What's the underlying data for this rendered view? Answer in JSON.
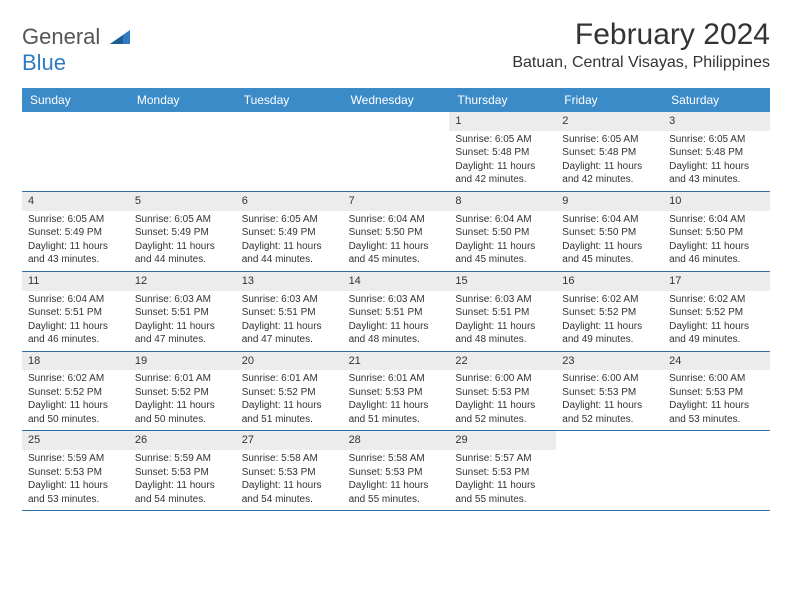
{
  "logo": {
    "line1": "General",
    "line2": "Blue"
  },
  "title": "February 2024",
  "subtitle": "Batuan, Central Visayas, Philippines",
  "colors": {
    "header_bg": "#3b8bc9",
    "header_text": "#ffffff",
    "daynum_bg": "#ececec",
    "week_border": "#2f6da8",
    "logo_gray": "#555555",
    "logo_blue": "#2f7ac0",
    "text": "#333333",
    "background": "#ffffff"
  },
  "day_names": [
    "Sunday",
    "Monday",
    "Tuesday",
    "Wednesday",
    "Thursday",
    "Friday",
    "Saturday"
  ],
  "weeks": [
    [
      {
        "day": "",
        "sunrise": "",
        "sunset": "",
        "daylight": ""
      },
      {
        "day": "",
        "sunrise": "",
        "sunset": "",
        "daylight": ""
      },
      {
        "day": "",
        "sunrise": "",
        "sunset": "",
        "daylight": ""
      },
      {
        "day": "",
        "sunrise": "",
        "sunset": "",
        "daylight": ""
      },
      {
        "day": "1",
        "sunrise": "Sunrise: 6:05 AM",
        "sunset": "Sunset: 5:48 PM",
        "daylight": "Daylight: 11 hours and 42 minutes."
      },
      {
        "day": "2",
        "sunrise": "Sunrise: 6:05 AM",
        "sunset": "Sunset: 5:48 PM",
        "daylight": "Daylight: 11 hours and 42 minutes."
      },
      {
        "day": "3",
        "sunrise": "Sunrise: 6:05 AM",
        "sunset": "Sunset: 5:48 PM",
        "daylight": "Daylight: 11 hours and 43 minutes."
      }
    ],
    [
      {
        "day": "4",
        "sunrise": "Sunrise: 6:05 AM",
        "sunset": "Sunset: 5:49 PM",
        "daylight": "Daylight: 11 hours and 43 minutes."
      },
      {
        "day": "5",
        "sunrise": "Sunrise: 6:05 AM",
        "sunset": "Sunset: 5:49 PM",
        "daylight": "Daylight: 11 hours and 44 minutes."
      },
      {
        "day": "6",
        "sunrise": "Sunrise: 6:05 AM",
        "sunset": "Sunset: 5:49 PM",
        "daylight": "Daylight: 11 hours and 44 minutes."
      },
      {
        "day": "7",
        "sunrise": "Sunrise: 6:04 AM",
        "sunset": "Sunset: 5:50 PM",
        "daylight": "Daylight: 11 hours and 45 minutes."
      },
      {
        "day": "8",
        "sunrise": "Sunrise: 6:04 AM",
        "sunset": "Sunset: 5:50 PM",
        "daylight": "Daylight: 11 hours and 45 minutes."
      },
      {
        "day": "9",
        "sunrise": "Sunrise: 6:04 AM",
        "sunset": "Sunset: 5:50 PM",
        "daylight": "Daylight: 11 hours and 45 minutes."
      },
      {
        "day": "10",
        "sunrise": "Sunrise: 6:04 AM",
        "sunset": "Sunset: 5:50 PM",
        "daylight": "Daylight: 11 hours and 46 minutes."
      }
    ],
    [
      {
        "day": "11",
        "sunrise": "Sunrise: 6:04 AM",
        "sunset": "Sunset: 5:51 PM",
        "daylight": "Daylight: 11 hours and 46 minutes."
      },
      {
        "day": "12",
        "sunrise": "Sunrise: 6:03 AM",
        "sunset": "Sunset: 5:51 PM",
        "daylight": "Daylight: 11 hours and 47 minutes."
      },
      {
        "day": "13",
        "sunrise": "Sunrise: 6:03 AM",
        "sunset": "Sunset: 5:51 PM",
        "daylight": "Daylight: 11 hours and 47 minutes."
      },
      {
        "day": "14",
        "sunrise": "Sunrise: 6:03 AM",
        "sunset": "Sunset: 5:51 PM",
        "daylight": "Daylight: 11 hours and 48 minutes."
      },
      {
        "day": "15",
        "sunrise": "Sunrise: 6:03 AM",
        "sunset": "Sunset: 5:51 PM",
        "daylight": "Daylight: 11 hours and 48 minutes."
      },
      {
        "day": "16",
        "sunrise": "Sunrise: 6:02 AM",
        "sunset": "Sunset: 5:52 PM",
        "daylight": "Daylight: 11 hours and 49 minutes."
      },
      {
        "day": "17",
        "sunrise": "Sunrise: 6:02 AM",
        "sunset": "Sunset: 5:52 PM",
        "daylight": "Daylight: 11 hours and 49 minutes."
      }
    ],
    [
      {
        "day": "18",
        "sunrise": "Sunrise: 6:02 AM",
        "sunset": "Sunset: 5:52 PM",
        "daylight": "Daylight: 11 hours and 50 minutes."
      },
      {
        "day": "19",
        "sunrise": "Sunrise: 6:01 AM",
        "sunset": "Sunset: 5:52 PM",
        "daylight": "Daylight: 11 hours and 50 minutes."
      },
      {
        "day": "20",
        "sunrise": "Sunrise: 6:01 AM",
        "sunset": "Sunset: 5:52 PM",
        "daylight": "Daylight: 11 hours and 51 minutes."
      },
      {
        "day": "21",
        "sunrise": "Sunrise: 6:01 AM",
        "sunset": "Sunset: 5:53 PM",
        "daylight": "Daylight: 11 hours and 51 minutes."
      },
      {
        "day": "22",
        "sunrise": "Sunrise: 6:00 AM",
        "sunset": "Sunset: 5:53 PM",
        "daylight": "Daylight: 11 hours and 52 minutes."
      },
      {
        "day": "23",
        "sunrise": "Sunrise: 6:00 AM",
        "sunset": "Sunset: 5:53 PM",
        "daylight": "Daylight: 11 hours and 52 minutes."
      },
      {
        "day": "24",
        "sunrise": "Sunrise: 6:00 AM",
        "sunset": "Sunset: 5:53 PM",
        "daylight": "Daylight: 11 hours and 53 minutes."
      }
    ],
    [
      {
        "day": "25",
        "sunrise": "Sunrise: 5:59 AM",
        "sunset": "Sunset: 5:53 PM",
        "daylight": "Daylight: 11 hours and 53 minutes."
      },
      {
        "day": "26",
        "sunrise": "Sunrise: 5:59 AM",
        "sunset": "Sunset: 5:53 PM",
        "daylight": "Daylight: 11 hours and 54 minutes."
      },
      {
        "day": "27",
        "sunrise": "Sunrise: 5:58 AM",
        "sunset": "Sunset: 5:53 PM",
        "daylight": "Daylight: 11 hours and 54 minutes."
      },
      {
        "day": "28",
        "sunrise": "Sunrise: 5:58 AM",
        "sunset": "Sunset: 5:53 PM",
        "daylight": "Daylight: 11 hours and 55 minutes."
      },
      {
        "day": "29",
        "sunrise": "Sunrise: 5:57 AM",
        "sunset": "Sunset: 5:53 PM",
        "daylight": "Daylight: 11 hours and 55 minutes."
      },
      {
        "day": "",
        "sunrise": "",
        "sunset": "",
        "daylight": ""
      },
      {
        "day": "",
        "sunrise": "",
        "sunset": "",
        "daylight": ""
      }
    ]
  ]
}
